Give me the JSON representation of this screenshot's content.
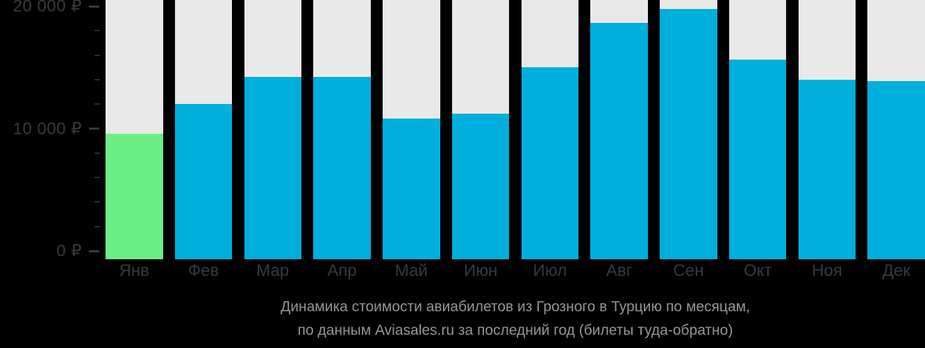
{
  "chart_data": {
    "type": "bar",
    "title": "Динамика стоимости авиабилетов из Грозного в Турцию по месяцам, по данным Aviasales.ru за последний год (билеты туда-обратно)",
    "categories": [
      "Янв",
      "Фев",
      "Мар",
      "Апр",
      "Май",
      "Июн",
      "Июл",
      "Авг",
      "Сен",
      "Окт",
      "Ноя",
      "Дек"
    ],
    "values": [
      9900,
      12300,
      14400,
      14400,
      11100,
      11500,
      15200,
      18700,
      19800,
      15800,
      14200,
      14100
    ],
    "unit": "₽",
    "ylim": [
      0,
      20000
    ],
    "y_major_ticks": [
      {
        "value": 0,
        "label": "0 ₽"
      },
      {
        "value": 10000,
        "label": "10 000 ₽"
      },
      {
        "value": 20000,
        "label": "20 000 ₽"
      }
    ],
    "y_minor_tick_step": 2000,
    "grid": "off",
    "legend": "none",
    "xlabel": "",
    "ylabel": "",
    "highlight": {
      "index": 0,
      "category": "Янв"
    },
    "colors": {
      "background": "#000000",
      "bar_default": "#00afdc",
      "bar_highlight": "#6bee85",
      "column_track": "#e9e9e9",
      "axis_text": "#37393c",
      "tick_major": "#3a3c3e",
      "tick_minor": "#2d2f31",
      "caption_text": "#969696"
    }
  },
  "caption": {
    "line1": "Динамика стоимости авиабилетов из Грозного в Турцию по месяцам,",
    "line2": "по данным Aviasales.ru за последний год (билеты туда-обратно)"
  }
}
